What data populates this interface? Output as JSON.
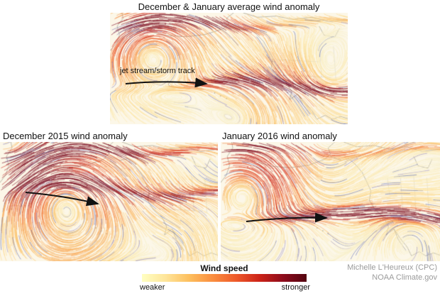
{
  "figure": {
    "maps": [
      {
        "id": "average",
        "title": "December & January average wind anomaly",
        "annotation": "jet stream/storm track"
      },
      {
        "id": "dec2015",
        "title": "December 2015 wind anomaly"
      },
      {
        "id": "jan2016",
        "title": "January 2016 wind anomaly"
      }
    ],
    "legend": {
      "title": "Wind speed",
      "left_label": "weaker",
      "right_label": "stronger",
      "gradient": [
        "#ffffc2",
        "#fee59a",
        "#fdbf5e",
        "#fa8e3f",
        "#ee5a2a",
        "#cc2318",
        "#8e0c1c",
        "#530410"
      ]
    },
    "credits": [
      "Michelle L'Heureux (CPC)",
      "NOAA Climate.gov"
    ],
    "colors": {
      "map_background": "#fcf7e8",
      "coastline": "#b8b4a7",
      "arrow": "#111111"
    }
  }
}
